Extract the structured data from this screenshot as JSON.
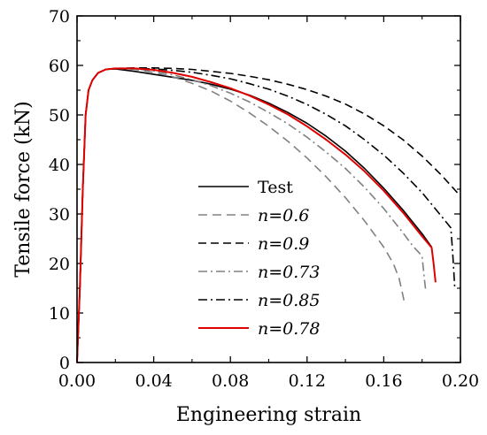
{
  "chart_data": {
    "type": "line",
    "xlabel": "Engineering strain",
    "ylabel": "Tensile force (kN)",
    "xlim": [
      0.0,
      0.2
    ],
    "ylim": [
      0,
      70
    ],
    "x_ticks": [
      "0.00",
      "0.04",
      "0.08",
      "0.12",
      "0.16",
      "0.20"
    ],
    "y_ticks": [
      "0",
      "10",
      "20",
      "30",
      "40",
      "50",
      "60",
      "70"
    ],
    "grid": false,
    "legend_position": "center-right",
    "series": [
      {
        "name": "Test",
        "color": "#000000",
        "dash": "solid",
        "x": [
          0.0,
          0.0015,
          0.003,
          0.0045,
          0.006,
          0.008,
          0.011,
          0.015,
          0.02,
          0.03,
          0.04,
          0.05,
          0.06,
          0.07,
          0.08,
          0.09,
          0.1,
          0.11,
          0.12,
          0.13,
          0.14,
          0.15,
          0.16,
          0.17,
          0.18,
          0.185
        ],
        "y": [
          0,
          15,
          35,
          50,
          55,
          57,
          58.5,
          59.2,
          59.3,
          58.8,
          58.2,
          57.6,
          57.0,
          56.2,
          55.2,
          54.0,
          52.4,
          50.5,
          48.3,
          45.7,
          42.7,
          39.2,
          35.2,
          30.8,
          26.0,
          23.3
        ]
      },
      {
        "name": "n=0.6",
        "color": "#808080",
        "dash": "long-dash",
        "x": [
          0.0,
          0.0015,
          0.003,
          0.0045,
          0.006,
          0.008,
          0.011,
          0.015,
          0.02,
          0.03,
          0.04,
          0.05,
          0.06,
          0.07,
          0.08,
          0.09,
          0.1,
          0.11,
          0.12,
          0.13,
          0.14,
          0.15,
          0.16,
          0.165,
          0.168,
          0.17,
          0.171
        ],
        "y": [
          0,
          15,
          35,
          50,
          55,
          57,
          58.5,
          59.2,
          59.4,
          59.2,
          58.6,
          57.7,
          56.4,
          54.8,
          52.8,
          50.4,
          47.7,
          44.7,
          41.3,
          37.5,
          33.3,
          28.6,
          23.3,
          20.0,
          17.0,
          13.5,
          11.7
        ]
      },
      {
        "name": "n=0.9",
        "color": "#000000",
        "dash": "dash",
        "x": [
          0.0,
          0.0015,
          0.003,
          0.0045,
          0.006,
          0.008,
          0.011,
          0.015,
          0.02,
          0.03,
          0.04,
          0.05,
          0.06,
          0.07,
          0.08,
          0.09,
          0.1,
          0.11,
          0.12,
          0.13,
          0.14,
          0.15,
          0.16,
          0.17,
          0.18,
          0.19,
          0.2
        ],
        "y": [
          0,
          15,
          35,
          50,
          55,
          57,
          58.5,
          59.2,
          59.4,
          59.5,
          59.5,
          59.4,
          59.2,
          58.8,
          58.4,
          57.8,
          57.1,
          56.2,
          55.1,
          53.8,
          52.2,
          50.2,
          47.8,
          45.0,
          41.7,
          37.9,
          33.6
        ]
      },
      {
        "name": "n=0.73",
        "color": "#808080",
        "dash": "dash-dot",
        "x": [
          0.0,
          0.0015,
          0.003,
          0.0045,
          0.006,
          0.008,
          0.011,
          0.015,
          0.02,
          0.03,
          0.04,
          0.05,
          0.06,
          0.07,
          0.08,
          0.09,
          0.1,
          0.11,
          0.12,
          0.13,
          0.14,
          0.15,
          0.16,
          0.17,
          0.175,
          0.18,
          0.181,
          0.182
        ],
        "y": [
          0,
          15,
          35,
          50,
          55,
          57,
          58.5,
          59.2,
          59.4,
          59.3,
          58.9,
          58.1,
          57.1,
          55.9,
          54.4,
          52.6,
          50.5,
          48.2,
          45.5,
          42.5,
          39.2,
          35.4,
          31.1,
          26.2,
          23.6,
          21.5,
          17.5,
          14.2
        ]
      },
      {
        "name": "n=0.85",
        "color": "#000000",
        "dash": "dash-dot",
        "x": [
          0.0,
          0.0015,
          0.003,
          0.0045,
          0.006,
          0.008,
          0.011,
          0.015,
          0.02,
          0.03,
          0.04,
          0.05,
          0.06,
          0.07,
          0.08,
          0.09,
          0.1,
          0.11,
          0.12,
          0.13,
          0.14,
          0.15,
          0.16,
          0.17,
          0.18,
          0.19,
          0.195,
          0.196,
          0.197
        ],
        "y": [
          0,
          15,
          35,
          50,
          55,
          57,
          58.5,
          59.2,
          59.4,
          59.4,
          59.3,
          59.0,
          58.6,
          58.0,
          57.3,
          56.3,
          55.2,
          53.8,
          52.1,
          50.1,
          47.8,
          45.0,
          41.9,
          38.3,
          34.3,
          29.6,
          27.2,
          22.0,
          15.4
        ]
      },
      {
        "name": "n=0.78",
        "color": "#e00000",
        "dash": "solid",
        "x": [
          0.0,
          0.0015,
          0.003,
          0.0045,
          0.006,
          0.008,
          0.011,
          0.015,
          0.02,
          0.03,
          0.04,
          0.05,
          0.06,
          0.07,
          0.08,
          0.09,
          0.1,
          0.11,
          0.12,
          0.13,
          0.14,
          0.15,
          0.16,
          0.17,
          0.18,
          0.185,
          0.186,
          0.187
        ],
        "y": [
          0,
          15,
          35,
          50,
          55,
          57,
          58.5,
          59.2,
          59.4,
          59.4,
          59.1,
          58.5,
          57.7,
          56.6,
          55.4,
          53.9,
          52.1,
          50.1,
          47.7,
          45.0,
          42.0,
          38.6,
          34.7,
          30.3,
          25.5,
          23.2,
          20.0,
          16.2
        ]
      }
    ]
  }
}
